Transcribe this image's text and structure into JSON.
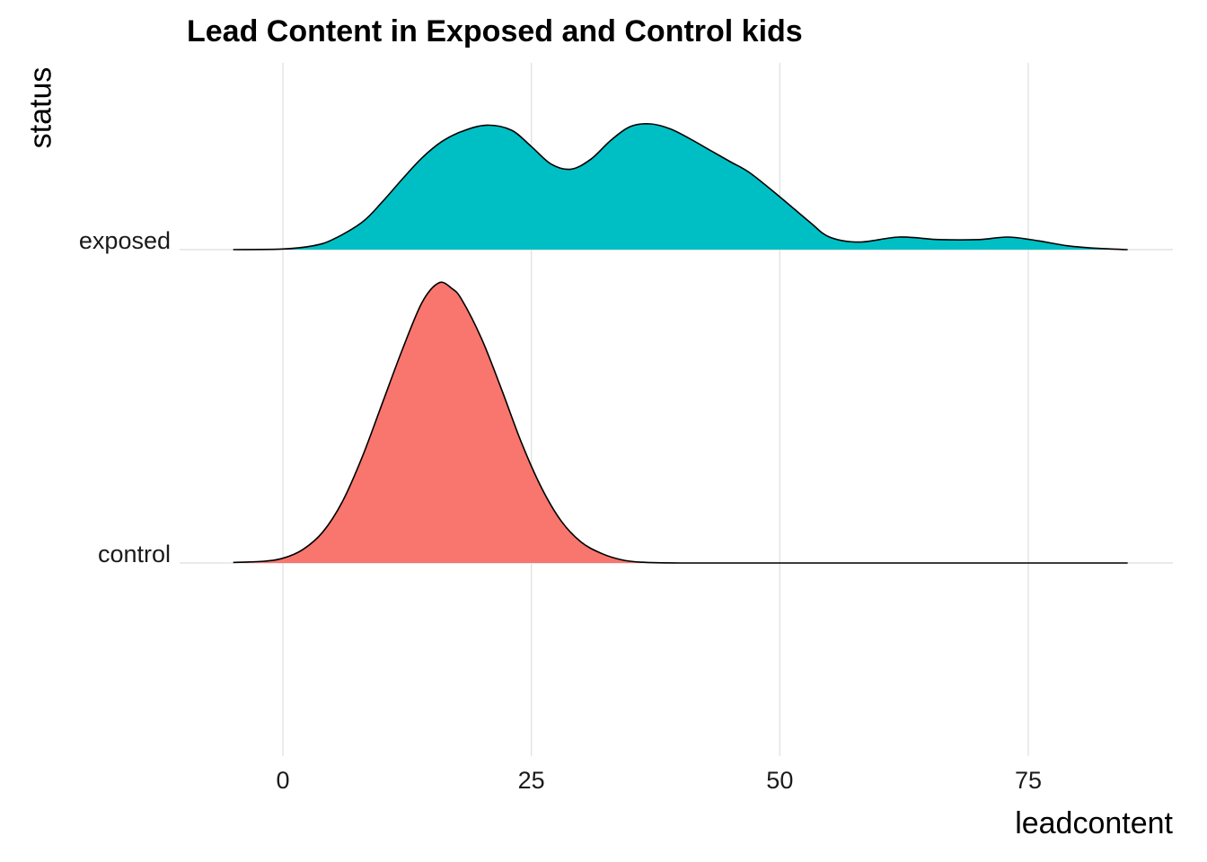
{
  "chart_data": {
    "type": "area",
    "subtype": "ridgeline",
    "title": "Lead Content in Exposed and Control kids",
    "xlabel": "leadcontent",
    "ylabel": "status",
    "x_ticks": [
      0,
      25,
      50,
      75
    ],
    "x_tick_labels": [
      "0",
      "25",
      "50",
      "75"
    ],
    "xlim": [
      -10,
      90
    ],
    "y_categories": [
      "control",
      "exposed"
    ],
    "grid": true,
    "legend": "none",
    "series": [
      {
        "name": "control",
        "color": "#F8766D",
        "x": [
          -5,
          -2,
          0,
          2,
          4,
          6,
          8,
          10,
          12,
          14,
          15.7,
          17,
          18,
          20,
          22,
          24,
          26,
          28,
          30,
          32,
          34,
          36,
          40,
          50,
          60,
          70,
          80,
          85
        ],
        "density": [
          0.002,
          0.006,
          0.017,
          0.048,
          0.11,
          0.22,
          0.38,
          0.57,
          0.76,
          0.93,
          1.0,
          0.98,
          0.94,
          0.8,
          0.62,
          0.43,
          0.27,
          0.15,
          0.075,
          0.035,
          0.012,
          0.003,
          0.0,
          0.0,
          0.0,
          0.0,
          0.0,
          0.0
        ]
      },
      {
        "name": "exposed",
        "color": "#00BFC4",
        "x": [
          -5,
          0,
          3,
          5,
          8,
          10,
          12,
          14,
          16,
          18,
          20.5,
          23,
          25,
          27,
          29,
          31,
          33,
          35,
          37,
          39,
          41,
          43,
          45,
          47,
          50,
          53,
          55,
          58,
          62,
          66,
          70,
          73,
          76,
          79,
          82,
          85
        ],
        "density": [
          0.0,
          0.005,
          0.03,
          0.08,
          0.22,
          0.38,
          0.56,
          0.73,
          0.86,
          0.94,
          0.99,
          0.95,
          0.82,
          0.68,
          0.64,
          0.72,
          0.87,
          0.98,
          1.0,
          0.96,
          0.88,
          0.79,
          0.7,
          0.61,
          0.42,
          0.22,
          0.1,
          0.06,
          0.1,
          0.08,
          0.08,
          0.1,
          0.07,
          0.03,
          0.01,
          0.0
        ]
      }
    ]
  }
}
